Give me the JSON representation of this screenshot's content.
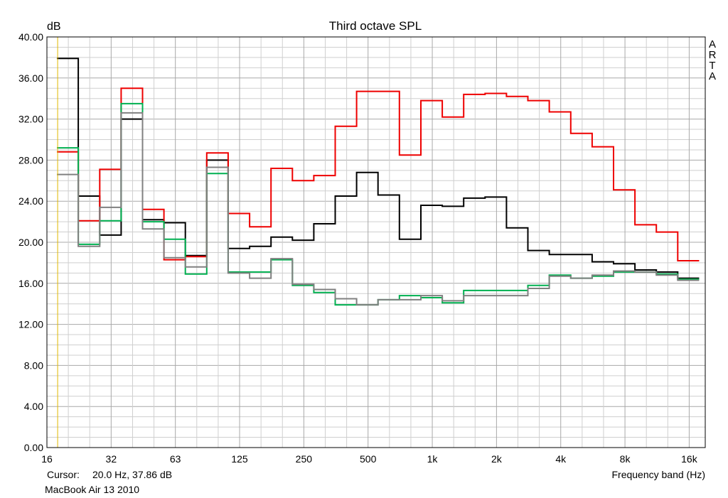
{
  "chart_data": {
    "type": "line",
    "title": "Third octave SPL",
    "ylabel": "dB",
    "xlabel": "Frequency band (Hz)",
    "brand": "ARTA",
    "caption": "MacBook Air 13 2010",
    "cursor": {
      "label": "Cursor:",
      "value": "20.0 Hz, 37.86 dB",
      "freq_hz": 20.0
    },
    "ylim": [
      0,
      40
    ],
    "grid": true,
    "y_ticks": [
      "0.00",
      "4.00",
      "8.00",
      "12.00",
      "16.00",
      "20.00",
      "24.00",
      "28.00",
      "32.00",
      "36.00",
      "40.00"
    ],
    "x_tick_labels": [
      "16",
      "32",
      "63",
      "125",
      "250",
      "500",
      "1k",
      "2k",
      "4k",
      "8k",
      "16k"
    ],
    "x": [
      "20",
      "25",
      "31.5",
      "40",
      "50",
      "63",
      "80",
      "100",
      "125",
      "160",
      "200",
      "250",
      "315",
      "400",
      "500",
      "630",
      "800",
      "1k",
      "1.25k",
      "1.6k",
      "2k",
      "2.5k",
      "3.15k",
      "4k",
      "5k",
      "6.3k",
      "8k",
      "10k",
      "12.5k",
      "16k"
    ],
    "series": [
      {
        "color": "#000000",
        "values": [
          37.9,
          24.5,
          20.7,
          32.0,
          22.2,
          21.9,
          18.7,
          28.0,
          19.4,
          19.6,
          20.5,
          20.2,
          21.8,
          24.5,
          26.8,
          24.6,
          20.3,
          23.6,
          23.5,
          24.3,
          24.4,
          21.4,
          19.2,
          18.8,
          18.8,
          18.1,
          17.9,
          17.3,
          17.1,
          16.5
        ]
      },
      {
        "color": "#ee0000",
        "values": [
          28.8,
          22.1,
          27.1,
          35.0,
          23.2,
          18.3,
          18.6,
          28.7,
          22.8,
          21.5,
          27.2,
          26.0,
          26.5,
          31.3,
          34.7,
          34.7,
          28.5,
          33.8,
          32.2,
          34.4,
          34.5,
          34.2,
          33.8,
          32.7,
          30.6,
          29.3,
          25.1,
          21.7,
          21.0,
          18.2
        ]
      },
      {
        "color": "#00b050",
        "values": [
          29.2,
          19.8,
          22.1,
          33.5,
          22.0,
          20.3,
          16.9,
          26.7,
          17.1,
          17.1,
          18.3,
          15.8,
          15.1,
          13.9,
          13.9,
          14.4,
          14.8,
          14.6,
          14.1,
          15.3,
          15.3,
          15.3,
          15.8,
          16.8,
          16.5,
          16.7,
          17.1,
          17.1,
          16.9,
          16.4
        ]
      },
      {
        "color": "#808080",
        "values": [
          26.6,
          19.6,
          23.4,
          32.6,
          21.3,
          18.5,
          17.6,
          27.3,
          17.0,
          16.5,
          18.4,
          15.9,
          15.4,
          14.5,
          13.9,
          14.4,
          14.4,
          14.8,
          14.3,
          14.8,
          14.8,
          14.8,
          15.5,
          16.7,
          16.5,
          16.8,
          17.2,
          17.1,
          16.8,
          16.3
        ]
      }
    ]
  }
}
